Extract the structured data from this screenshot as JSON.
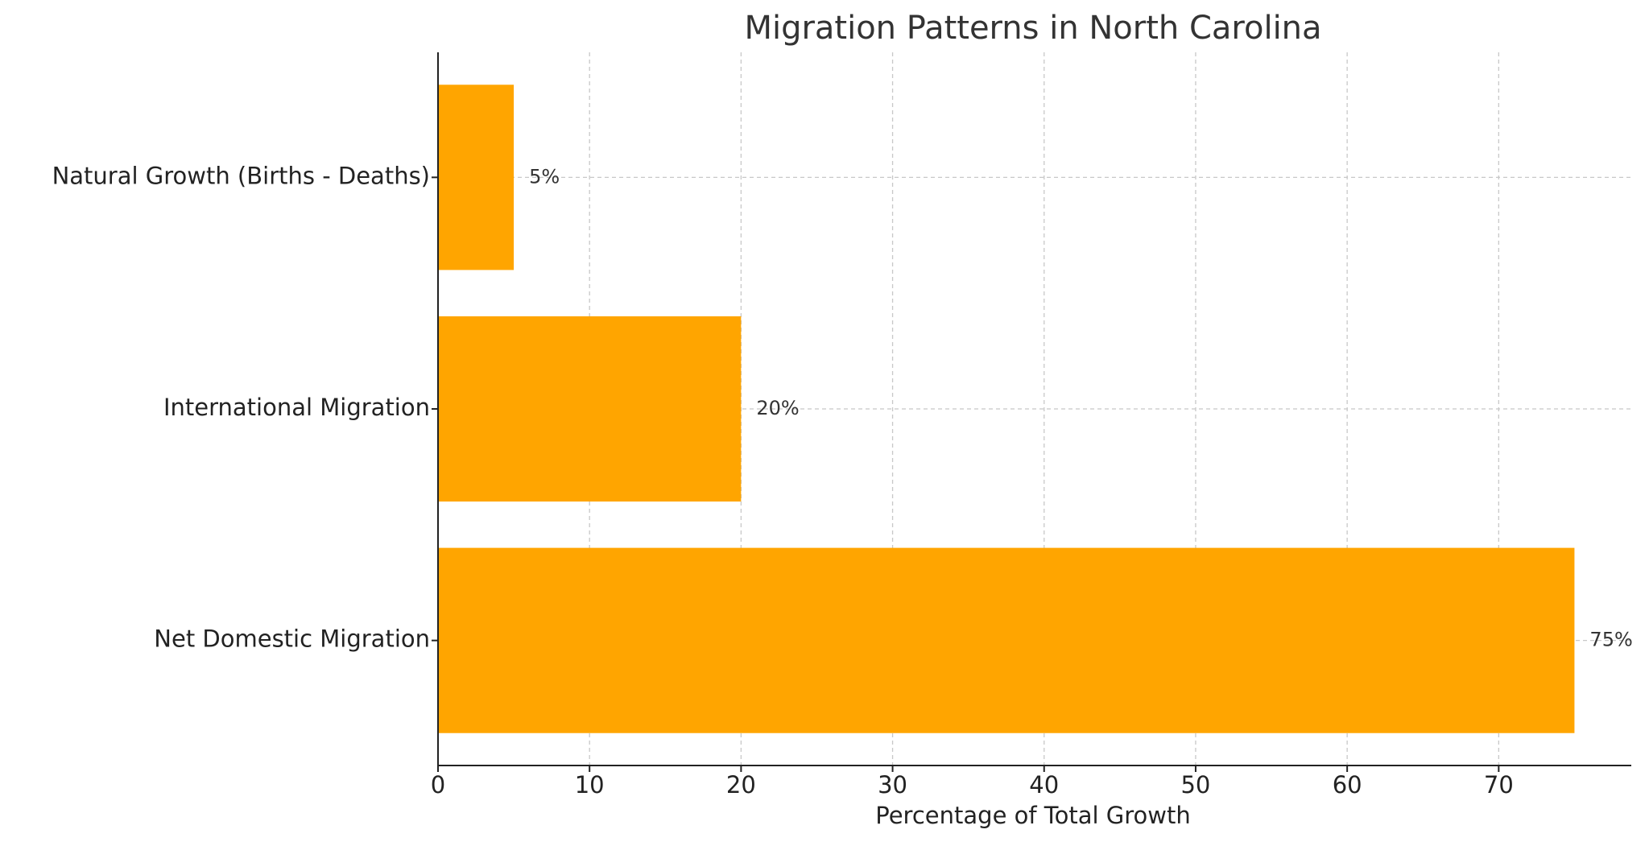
{
  "chart_data": {
    "type": "barh",
    "title": "Migration Patterns in North Carolina",
    "xlabel": "Percentage of Total Growth",
    "categories": [
      "Net Domestic Migration",
      "International Migration",
      "Natural Growth (Births - Deaths)"
    ],
    "values": [
      75,
      20,
      5
    ],
    "value_labels": [
      "75%",
      "20%",
      "5%"
    ],
    "color": "#ffa500",
    "xlim": [
      0,
      78.75
    ],
    "xticks": [
      0,
      10,
      20,
      30,
      40,
      50,
      60,
      70
    ],
    "grid": true
  }
}
